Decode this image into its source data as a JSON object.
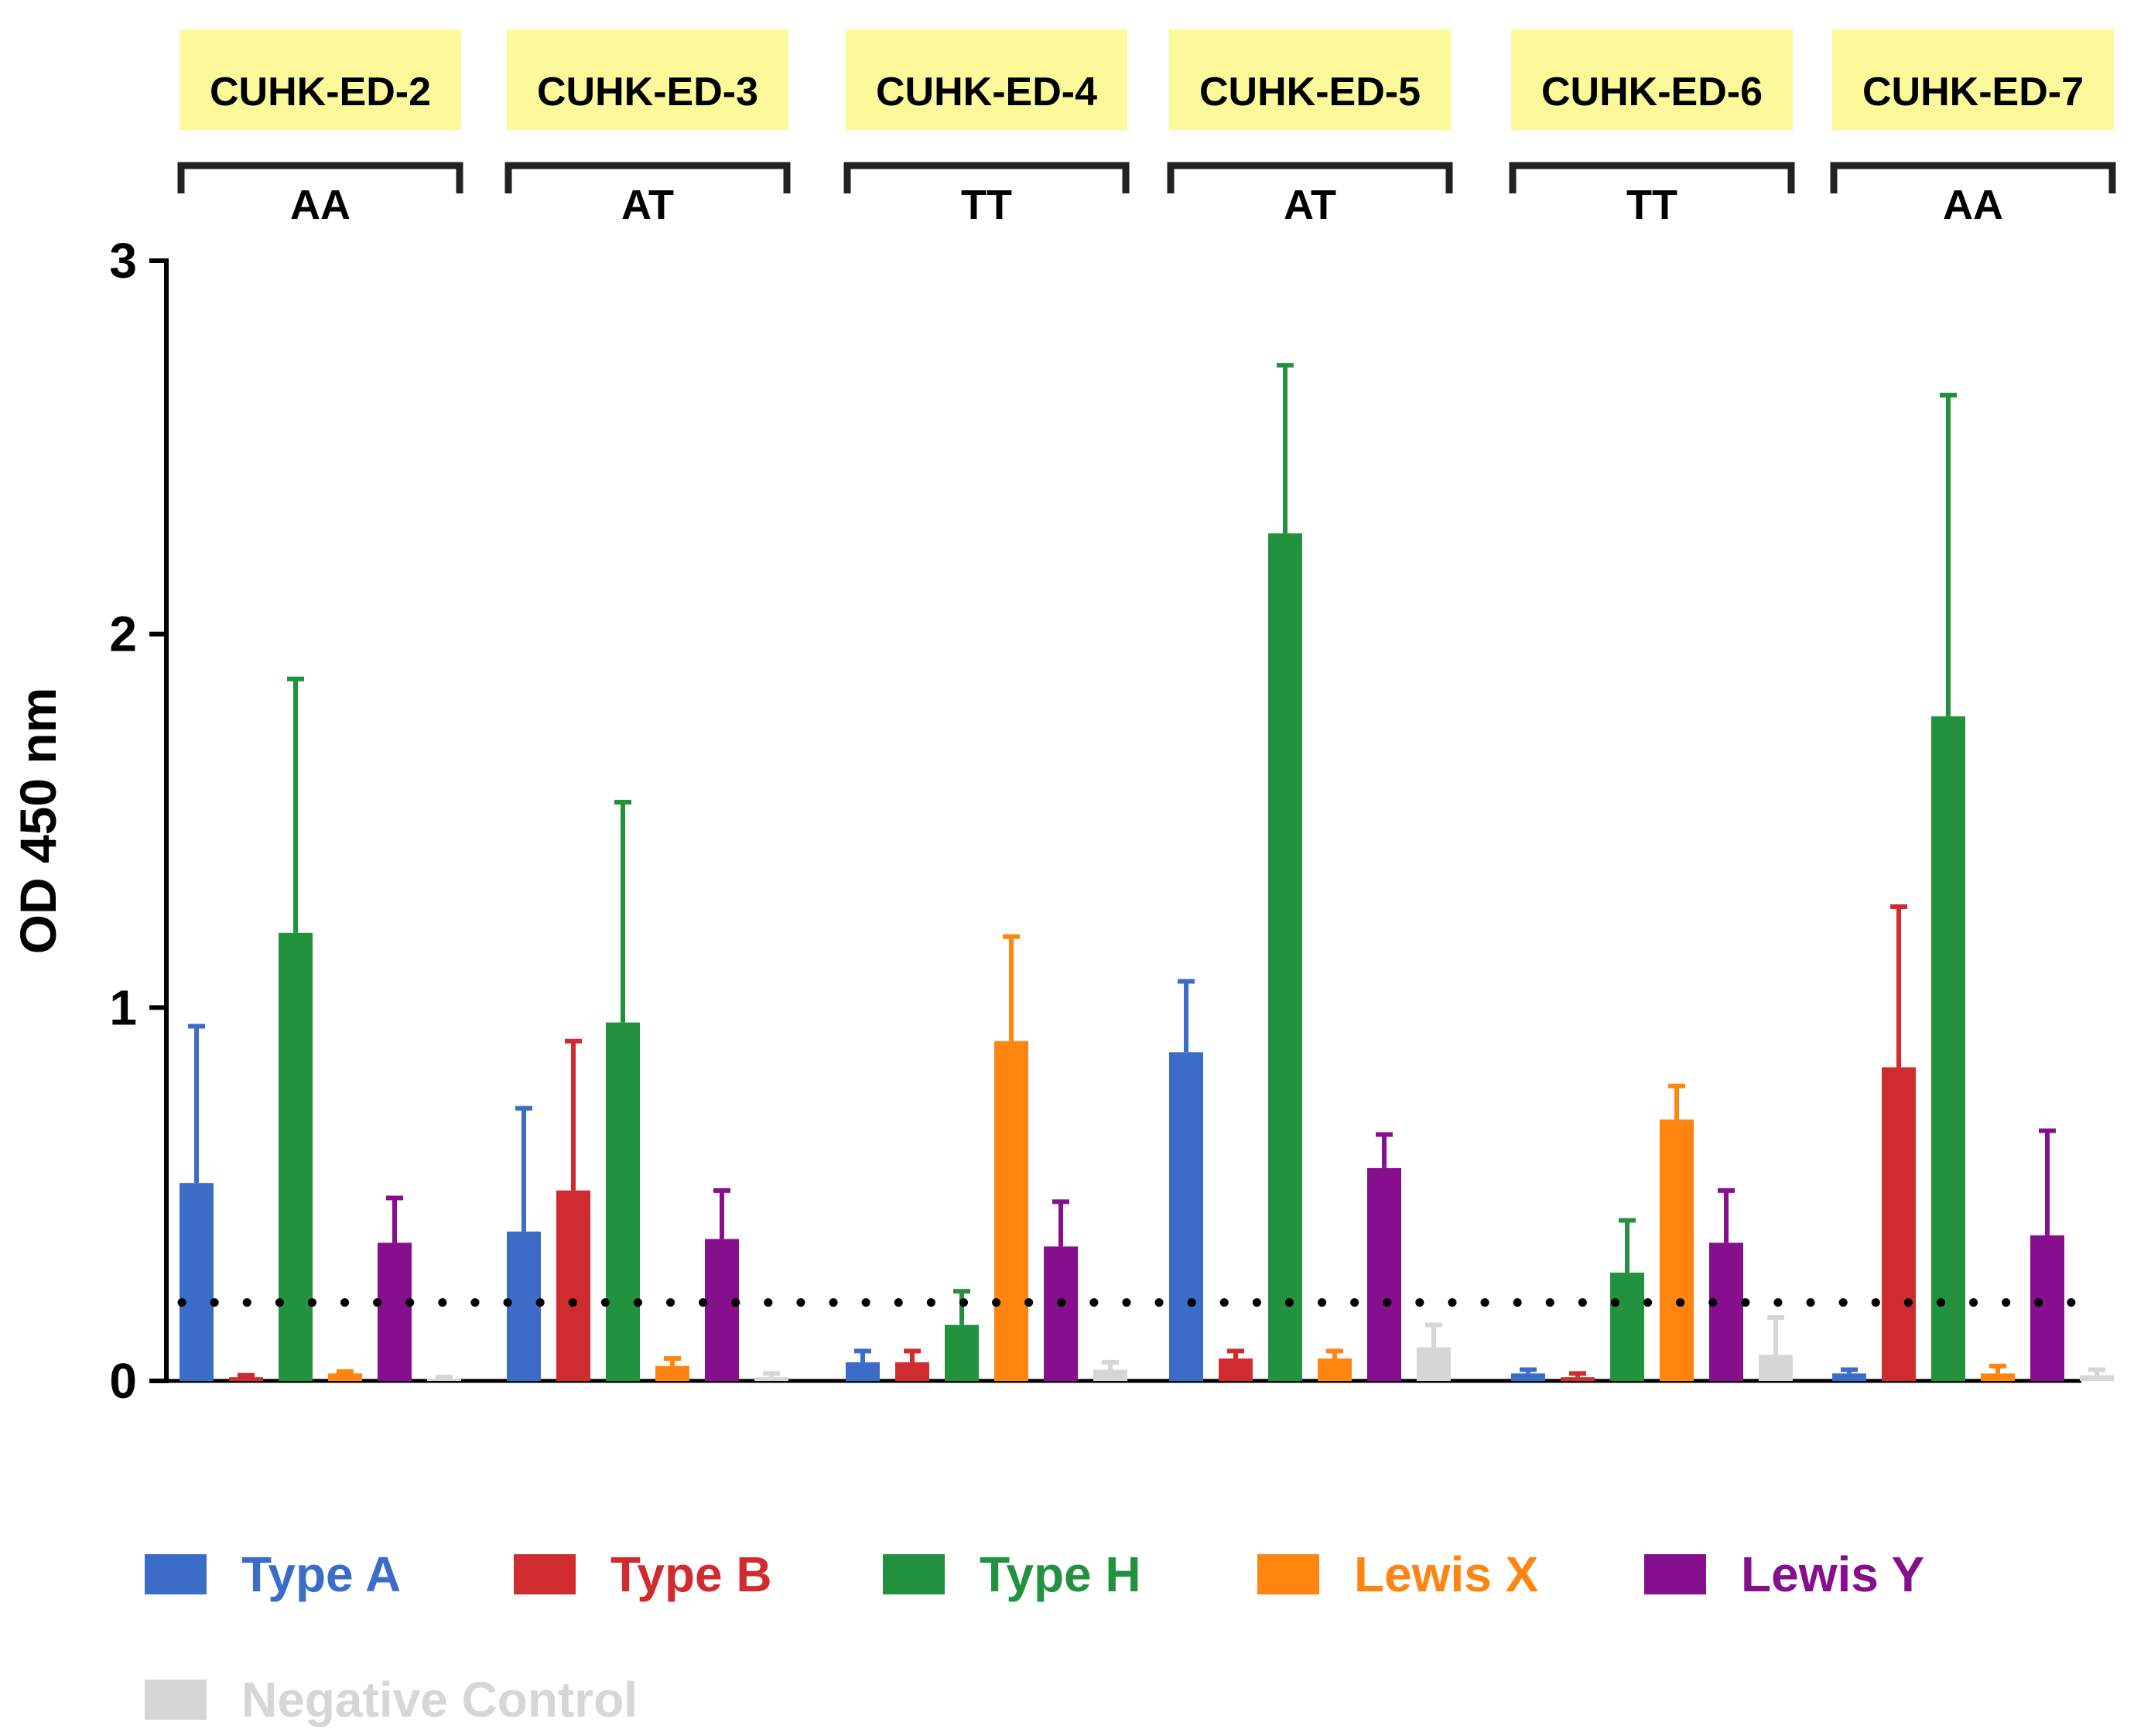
{
  "chart_data": {
    "type": "bar",
    "title": "",
    "xlabel": "",
    "ylabel": "OD 450 nm",
    "ylim": [
      0,
      3
    ],
    "yticks": [
      "0",
      "1",
      "2",
      "3"
    ],
    "grid": false,
    "threshold": 0.21,
    "groups": [
      {
        "name": "CUHK-ED-2",
        "genotype": "AA"
      },
      {
        "name": "CUHK-ED-3",
        "genotype": "AT"
      },
      {
        "name": "CUHK-ED-4",
        "genotype": "TT"
      },
      {
        "name": "CUHK-ED-5",
        "genotype": "AT"
      },
      {
        "name": "CUHK-ED-6",
        "genotype": "TT"
      },
      {
        "name": "CUHK-ED-7",
        "genotype": "AA"
      }
    ],
    "series": [
      {
        "name": "Type A",
        "color": "#3a6cc8",
        "values": [
          0.53,
          0.4,
          0.05,
          0.88,
          0.02,
          0.02
        ],
        "errors": [
          0.42,
          0.33,
          0.03,
          0.19,
          0.01,
          0.01
        ]
      },
      {
        "name": "Type B",
        "color": "#d02b2f",
        "values": [
          0.01,
          0.51,
          0.05,
          0.06,
          0.01,
          0.84
        ],
        "errors": [
          0.005,
          0.4,
          0.03,
          0.02,
          0.01,
          0.43
        ]
      },
      {
        "name": "Type H",
        "color": "#23923f",
        "values": [
          1.2,
          0.96,
          0.15,
          2.27,
          0.29,
          1.78
        ],
        "errors": [
          0.68,
          0.59,
          0.09,
          0.45,
          0.14,
          0.86
        ]
      },
      {
        "name": "Lewis X",
        "color": "#ff8410",
        "values": [
          0.02,
          0.04,
          0.91,
          0.06,
          0.7,
          0.02
        ],
        "errors": [
          0.005,
          0.02,
          0.28,
          0.02,
          0.09,
          0.02
        ]
      },
      {
        "name": "Lewis Y",
        "color": "#850f8c",
        "values": [
          0.37,
          0.38,
          0.36,
          0.57,
          0.37,
          0.39
        ],
        "errors": [
          0.12,
          0.13,
          0.12,
          0.09,
          0.14,
          0.28
        ]
      },
      {
        "name": "Negative Control",
        "color": "#d6d6d6",
        "values": [
          0.005,
          0.01,
          0.03,
          0.09,
          0.07,
          0.015
        ],
        "errors": [
          0.005,
          0.01,
          0.02,
          0.06,
          0.1,
          0.015
        ]
      }
    ]
  }
}
